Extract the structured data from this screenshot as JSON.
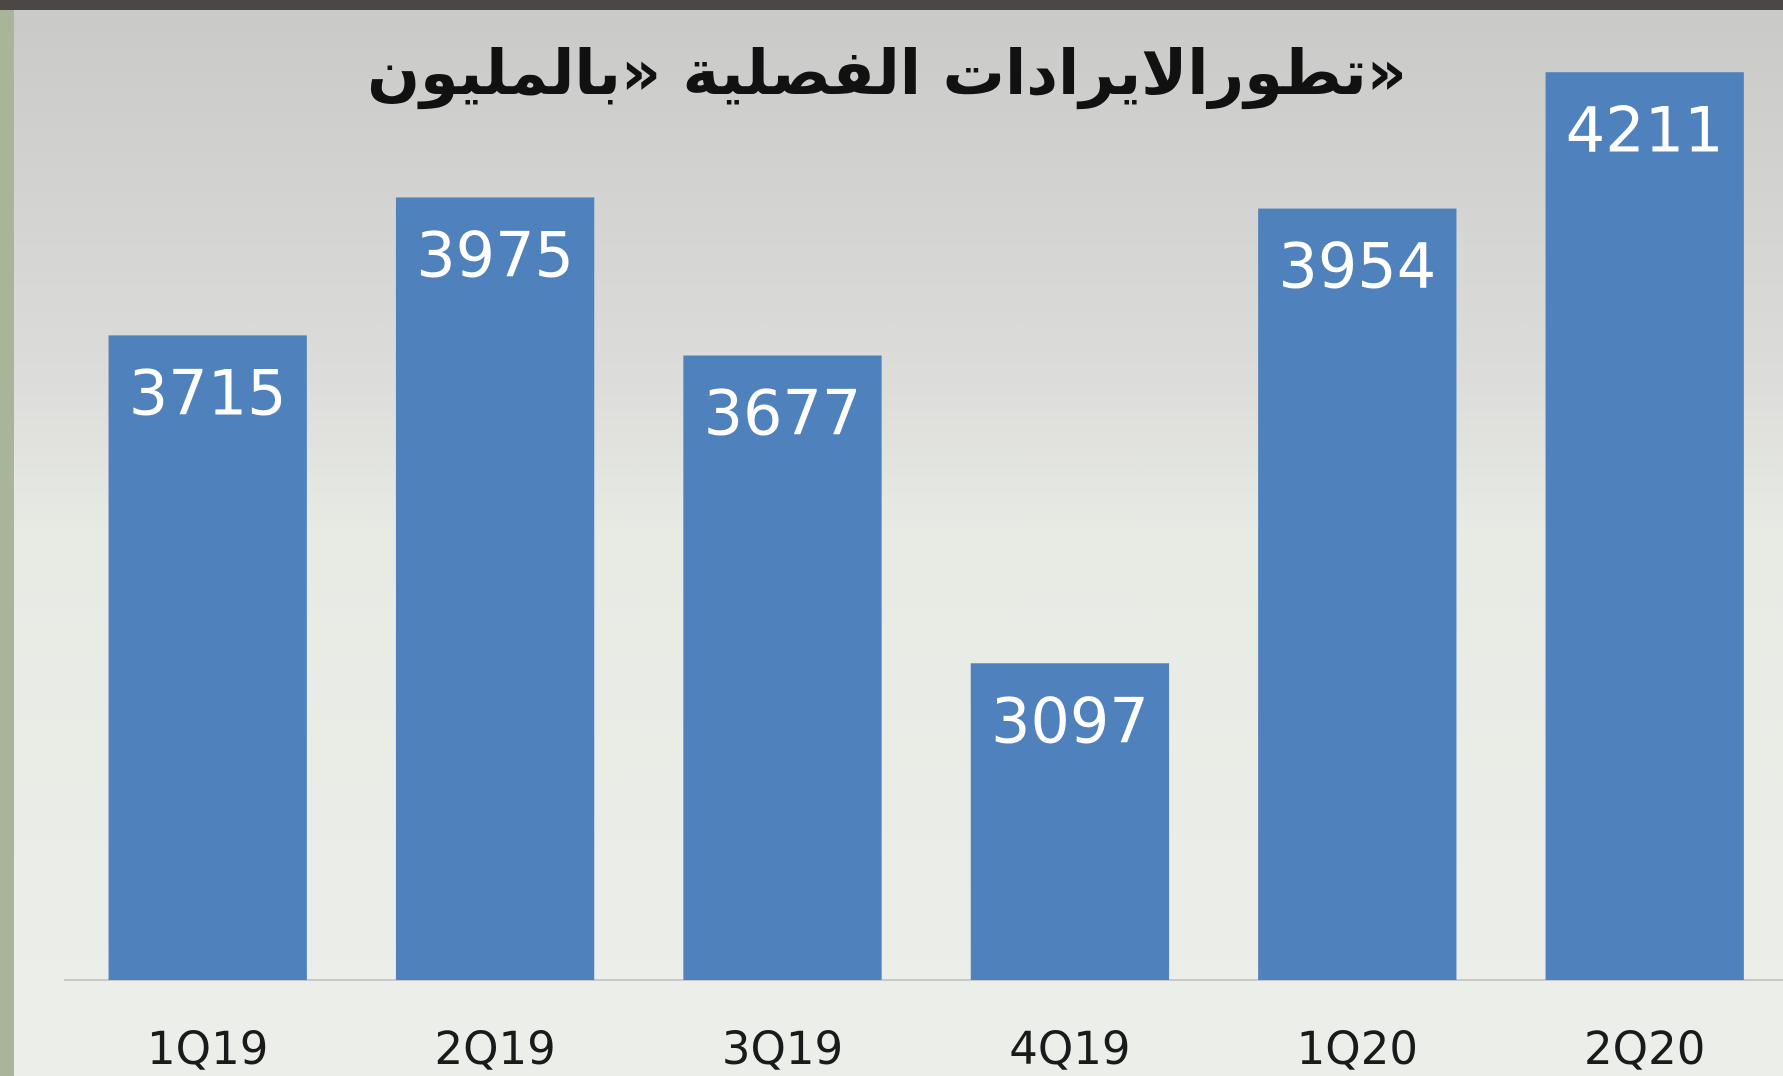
{
  "chart_data": {
    "type": "bar",
    "title": "تطورالايرادات الفصلية «بالمليون»",
    "categories": [
      "1Q19",
      "2Q19",
      "3Q19",
      "4Q19",
      "1Q20",
      "2Q20"
    ],
    "values": [
      3715,
      3975,
      3677,
      3097,
      3954,
      4211
    ],
    "color": "#4f81bd",
    "ylim": [
      2500,
      4300
    ]
  }
}
